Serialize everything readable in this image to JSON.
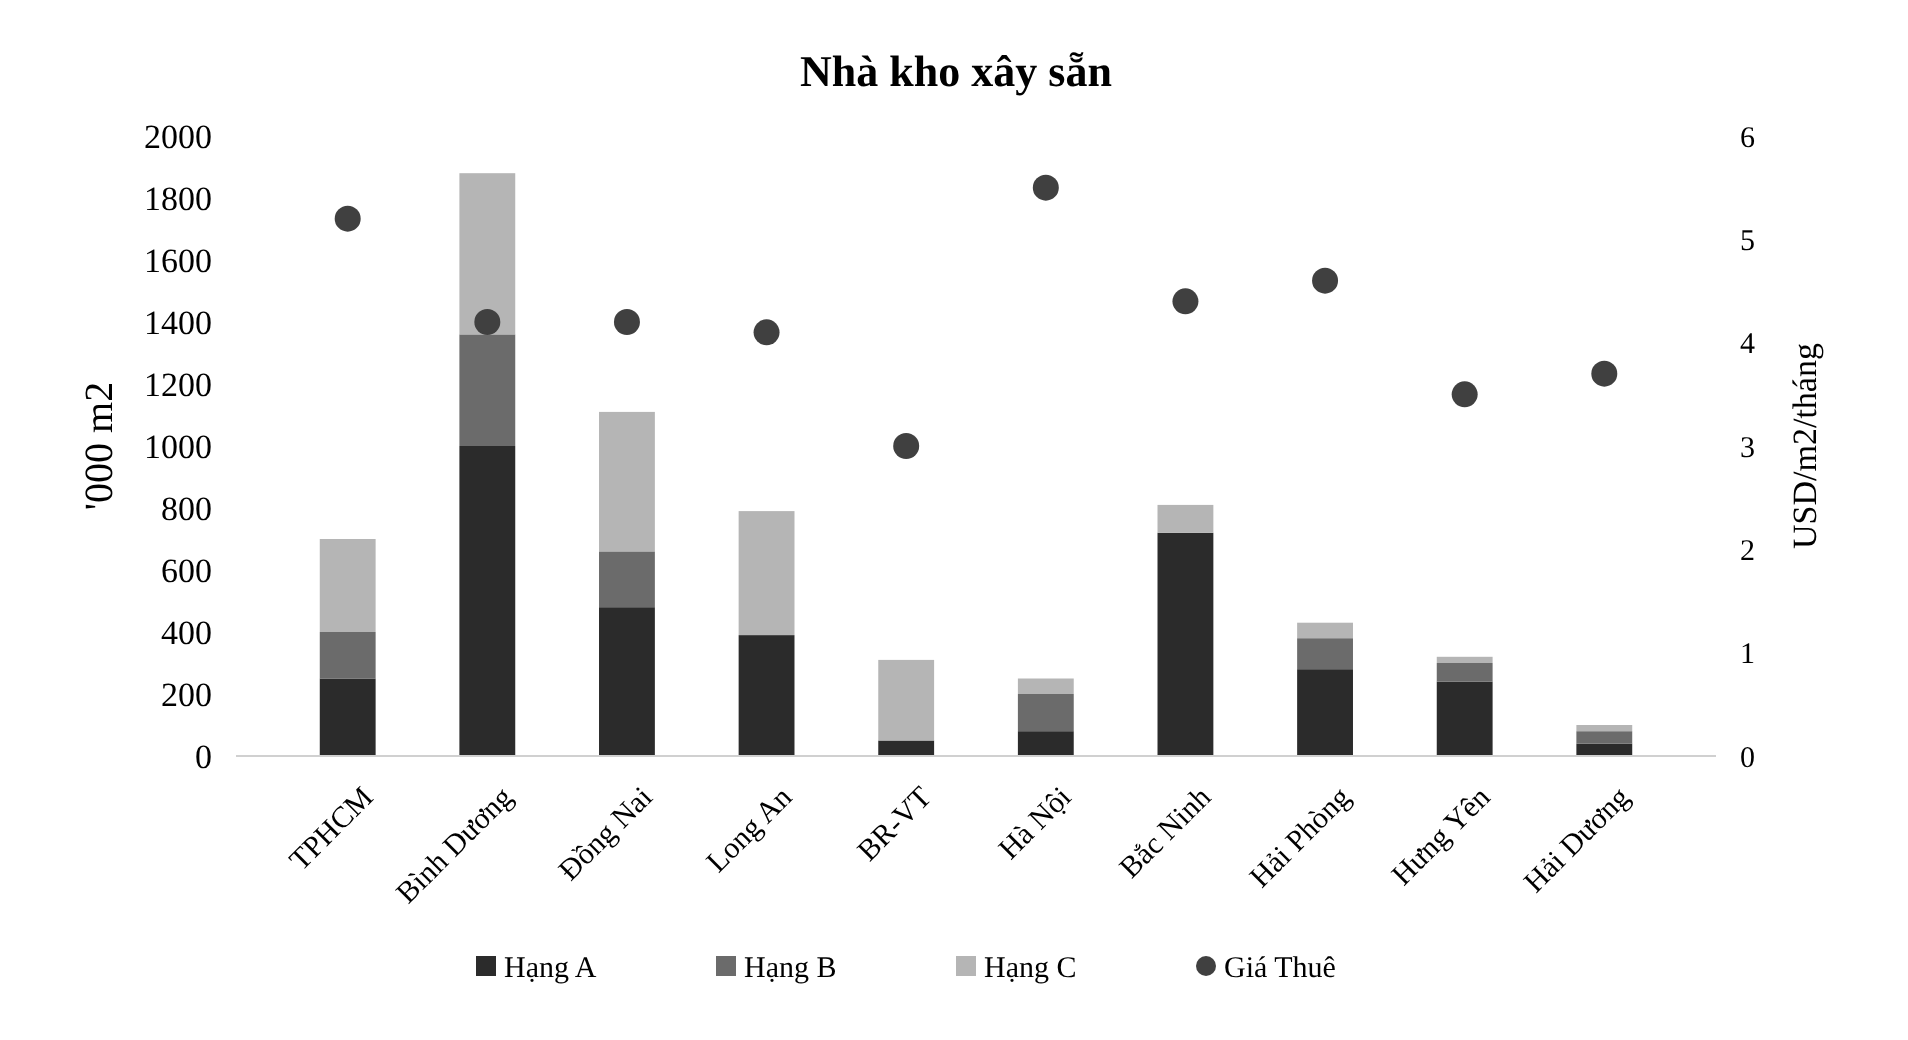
{
  "chart_data": {
    "type": "bar",
    "title": "Nhà kho xây sẵn",
    "ylabel": "'000 m2",
    "y2label": "USD/m2/tháng",
    "categories": [
      "TPHCM",
      "Bình Dương",
      "Đồng Nai",
      "Long An",
      "BR-VT",
      "Hà Nội",
      "Bắc Ninh",
      "Hải Phòng",
      "Hưng Yên",
      "Hải Dương"
    ],
    "stacked": true,
    "legend": "bottom",
    "grid": false,
    "marker": "circle",
    "ylim": [
      0,
      2000
    ],
    "yticks": [
      0,
      200,
      400,
      600,
      800,
      1000,
      1200,
      1400,
      1600,
      1800,
      2000
    ],
    "y2lim": [
      0,
      6
    ],
    "y2ticks": [
      0,
      1,
      2,
      3,
      4,
      5,
      6
    ],
    "series": [
      {
        "name": "Hạng A",
        "color": "#2b2b2b",
        "values": [
          250,
          1000,
          480,
          390,
          50,
          80,
          720,
          280,
          240,
          40
        ]
      },
      {
        "name": "Hạng B",
        "color": "#6b6b6b",
        "values": [
          150,
          360,
          180,
          0,
          0,
          120,
          0,
          100,
          60,
          40
        ]
      },
      {
        "name": "Hạng C",
        "color": "#b5b5b5",
        "values": [
          300,
          520,
          450,
          400,
          260,
          50,
          90,
          50,
          20,
          20
        ]
      },
      {
        "name": "Giá Thuê",
        "type": "scatter",
        "axis": "y2",
        "color": "#404040",
        "values": [
          5.2,
          4.2,
          4.2,
          4.1,
          3.0,
          5.5,
          4.4,
          4.6,
          3.5,
          3.7
        ]
      }
    ]
  }
}
